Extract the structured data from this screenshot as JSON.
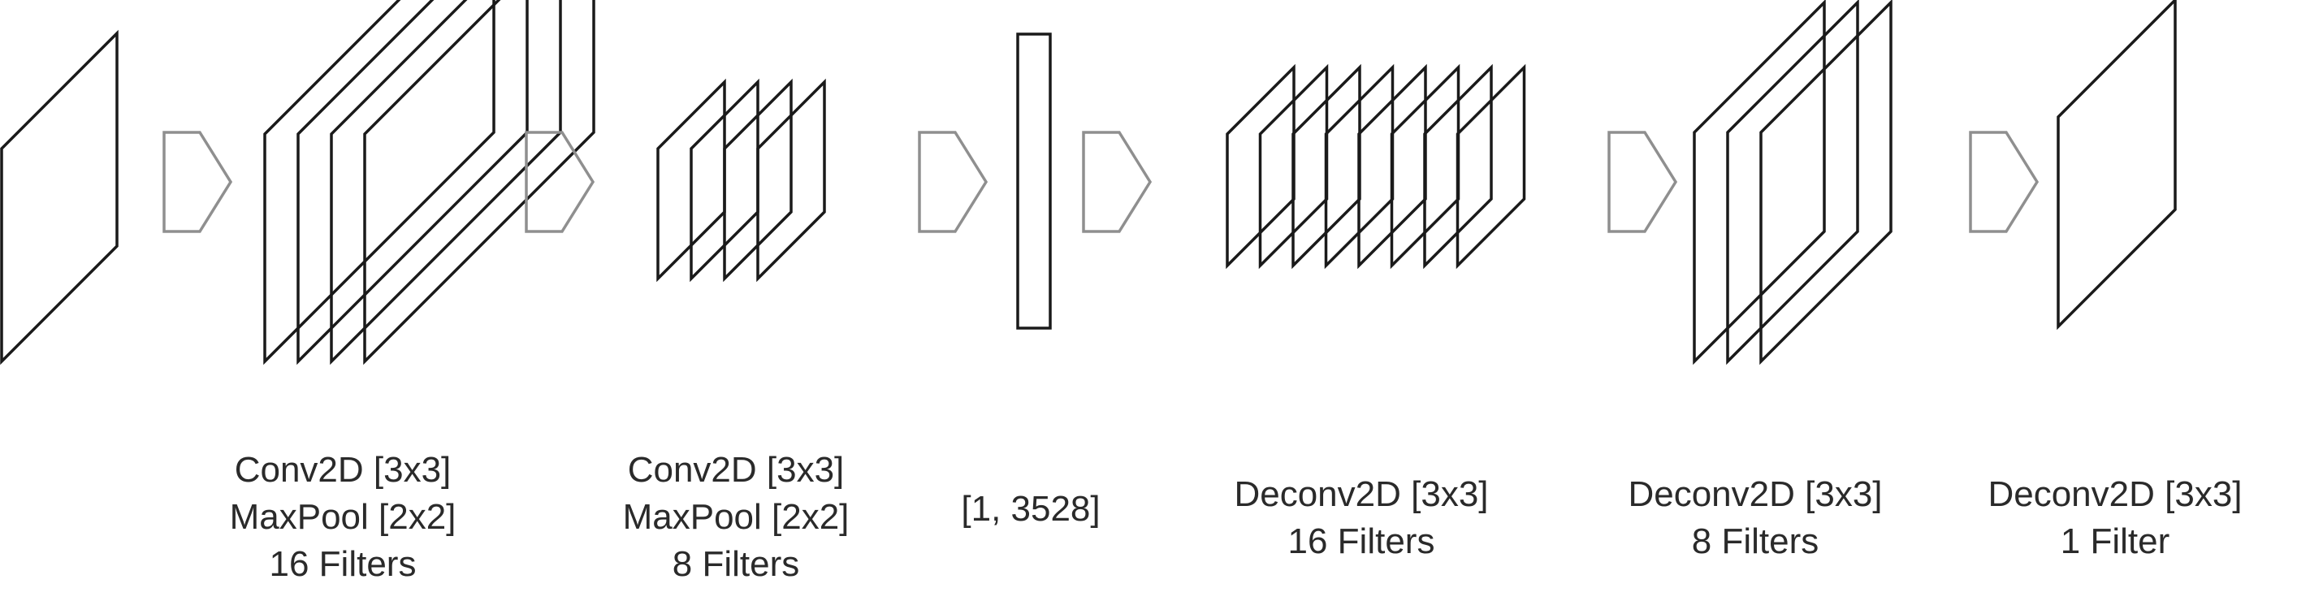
{
  "diagram": {
    "colors": {
      "layer_stroke": "#1a1a1a",
      "arrow_stroke": "#8f8f8f",
      "background": "#ffffff"
    },
    "labels": [
      {
        "lines": [
          "Conv2D [3x3]",
          "MaxPool [2x2]",
          "16 Filters"
        ]
      },
      {
        "lines": [
          "Conv2D [3x3]",
          "MaxPool [2x2]",
          "8 Filters"
        ]
      },
      {
        "lines": [
          "[1, 3528]"
        ]
      },
      {
        "lines": [
          "Deconv2D [3x3]",
          "16 Filters"
        ]
      },
      {
        "lines": [
          "Deconv2D [3x3]",
          "8 Filters"
        ]
      },
      {
        "lines": [
          "Deconv2D [3x3]",
          "1 Filter"
        ]
      }
    ],
    "stages": [
      {
        "kind": "input-map",
        "count": 1
      },
      {
        "kind": "encoder-maps",
        "count": 4
      },
      {
        "kind": "encoder-maps",
        "count": 4
      },
      {
        "kind": "flat-vector",
        "count": 1
      },
      {
        "kind": "decoder-maps",
        "count": 8
      },
      {
        "kind": "decoder-maps",
        "count": 3
      },
      {
        "kind": "output-map",
        "count": 1
      }
    ]
  }
}
